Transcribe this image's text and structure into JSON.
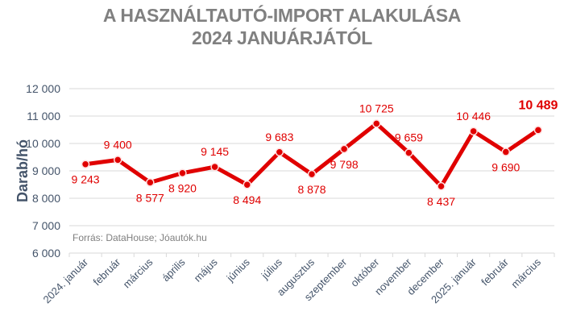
{
  "title": {
    "line1": "A HASZNÁLTAUTÓ-IMPORT ALAKULÁSA",
    "line2": "2024 JANUÁRJÁTÓL"
  },
  "source": "Forrás: DataHouse; Jóautók.hu",
  "colors": {
    "line": "#e00000",
    "title": "#808080",
    "axis_text": "#44546a",
    "grid": "#d9d9d9"
  },
  "chart_data": {
    "type": "line",
    "title": "A HASZNÁLTAUTÓ-IMPORT ALAKULÁSA 2024 JANUÁRJÁTÓL",
    "xlabel": "",
    "ylabel": "Darab/hó",
    "ylim": [
      6000,
      12000
    ],
    "yticks": [
      6000,
      7000,
      8000,
      9000,
      10000,
      11000,
      12000
    ],
    "ytick_labels": [
      "6 000",
      "7 000",
      "8 000",
      "9 000",
      "10 000",
      "11 000",
      "12 000"
    ],
    "grid": true,
    "legend": "none",
    "categories": [
      "2024. január",
      "február",
      "március",
      "április",
      "május",
      "június",
      "július",
      "augusztus",
      "szeptember",
      "október",
      "november",
      "december",
      "2025. január",
      "február",
      "március"
    ],
    "series": [
      {
        "name": "Darab/hó",
        "values": [
          9243,
          9400,
          8577,
          8920,
          9145,
          8494,
          9683,
          8878,
          9798,
          10725,
          9659,
          8437,
          10446,
          9690,
          10489
        ],
        "labels": [
          "9 243",
          "9 400",
          "8 577",
          "8 920",
          "9 145",
          "8 494",
          "9 683",
          "8 878",
          "9 798",
          "10 725",
          "9 659",
          "8 437",
          "10 446",
          "9 690",
          "10 489"
        ],
        "label_pos": [
          "below",
          "above",
          "below",
          "below",
          "above",
          "below",
          "above",
          "below",
          "below",
          "above",
          "above",
          "below",
          "above",
          "below",
          "above"
        ]
      }
    ],
    "annotations": [
      "Forrás: DataHouse; Jóautók.hu"
    ]
  }
}
